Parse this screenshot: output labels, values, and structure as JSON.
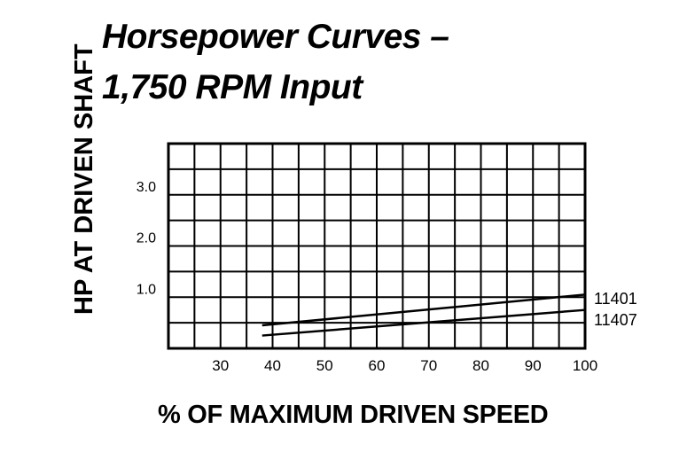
{
  "chart_data": {
    "type": "line",
    "title": "Horsepower Curves –",
    "subtitle": "1,750 RPM Input",
    "xlabel": "% OF MAXIMUM DRIVEN SPEED",
    "ylabel": "HP AT DRIVEN SHAFT",
    "xlim": [
      20,
      100
    ],
    "ylim": [
      0,
      4.0
    ],
    "x_ticks": [
      30,
      40,
      50,
      60,
      70,
      80,
      90,
      100
    ],
    "x_tick_labels": [
      "30",
      "40",
      "50",
      "60",
      "70",
      "80",
      "90",
      "100"
    ],
    "y_ticks": [
      1.0,
      2.0,
      3.0
    ],
    "y_tick_labels": [
      "1.0",
      "2.0",
      "3.0"
    ],
    "grid": true,
    "series": [
      {
        "name": "11401",
        "x": [
          38,
          100
        ],
        "y": [
          0.45,
          1.05
        ]
      },
      {
        "name": "11407",
        "x": [
          38,
          100
        ],
        "y": [
          0.25,
          0.75
        ]
      }
    ]
  }
}
